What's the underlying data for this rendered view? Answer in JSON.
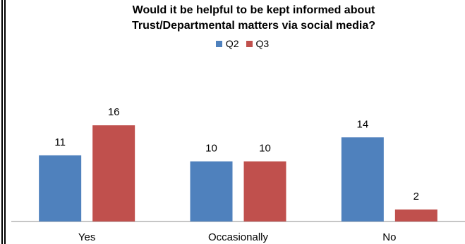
{
  "chart_data": {
    "type": "bar",
    "title_lines": [
      "Would it be helpful to be kept informed about",
      "Trust/Departmental matters via social media?"
    ],
    "categories": [
      "Yes",
      "Occasionally",
      "No"
    ],
    "series": [
      {
        "name": "Q2",
        "values": [
          11,
          10,
          14
        ],
        "color": "#4f81bd"
      },
      {
        "name": "Q3",
        "values": [
          16,
          10,
          2
        ],
        "color": "#c0504d"
      }
    ],
    "ylim": [
      0,
      17
    ],
    "legend_position": "top",
    "grid": false,
    "data_labels": true
  }
}
